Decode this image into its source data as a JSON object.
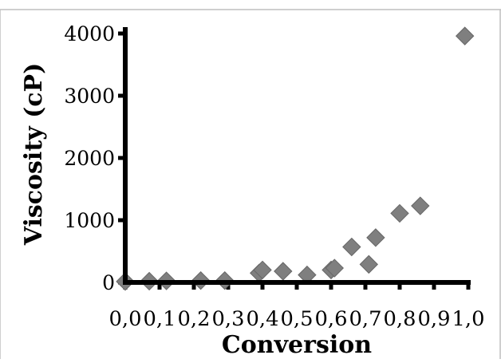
{
  "chart_data": {
    "type": "scatter",
    "title": "",
    "xlabel": "Conversion",
    "ylabel": "Viscosity (cP)",
    "xlim": [
      0.0,
      1.0
    ],
    "ylim": [
      0,
      4000
    ],
    "x_ticks": [
      0.0,
      0.1,
      0.2,
      0.3,
      0.4,
      0.5,
      0.6,
      0.7,
      0.8,
      0.9,
      1.0
    ],
    "x_tick_labels": [
      "0,0",
      "0,1",
      "0,2",
      "0,3",
      "0,4",
      "0,5",
      "0,6",
      "0,7",
      "0,8",
      "0,9",
      "1,0"
    ],
    "y_ticks": [
      0,
      1000,
      2000,
      3000,
      4000
    ],
    "y_tick_labels": [
      "0",
      "1000",
      "2000",
      "3000",
      "4000"
    ],
    "grid": false,
    "legend": "none",
    "marker": "diamond",
    "marker_color": "#7f7f7f",
    "series": [
      {
        "x": [
          0.0,
          0.07,
          0.12,
          0.22,
          0.29,
          0.39,
          0.4,
          0.46,
          0.53,
          0.6,
          0.61,
          0.66,
          0.71,
          0.73,
          0.8,
          0.86,
          0.99
        ],
        "y": [
          15,
          20,
          25,
          30,
          30,
          150,
          200,
          180,
          120,
          200,
          230,
          570,
          290,
          720,
          1110,
          1230,
          3960
        ]
      }
    ]
  }
}
